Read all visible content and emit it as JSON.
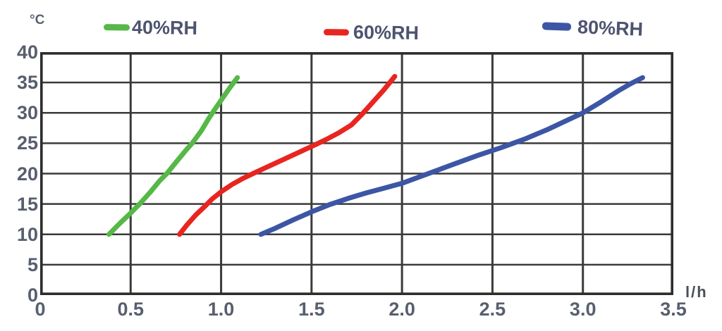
{
  "y_axis_unit": "°C",
  "x_axis_unit": "l/h",
  "colors": {
    "green": "#56b847",
    "red": "#e8251f",
    "blue": "#3c55a5",
    "grid": "#3b3b3b",
    "border": "#2d2d2d",
    "tick_text": "#575f6e",
    "legend_text": "#4d5470"
  },
  "chart_data": {
    "type": "line",
    "title": "",
    "xlabel": "l/h",
    "ylabel": "°C",
    "xlim": [
      0,
      3.5
    ],
    "ylim": [
      0,
      40
    ],
    "grid": true,
    "legend_position": "top",
    "x_ticks": [
      "0",
      "0.5",
      "1.0",
      "1.5",
      "2.0",
      "2.5",
      "3.0",
      "3.5"
    ],
    "y_ticks": [
      "0",
      "5",
      "10",
      "15",
      "20",
      "25",
      "30",
      "35",
      "40"
    ],
    "series": [
      {
        "name": "40%RH",
        "color": "#56b847",
        "points": [
          [
            0.38,
            10
          ],
          [
            0.44,
            11.8
          ],
          [
            0.5,
            13.5
          ],
          [
            0.55,
            15
          ],
          [
            0.61,
            17
          ],
          [
            0.66,
            18.8
          ],
          [
            0.7,
            20
          ],
          [
            0.76,
            22.2
          ],
          [
            0.81,
            24
          ],
          [
            0.84,
            25
          ],
          [
            0.89,
            27
          ],
          [
            0.93,
            29
          ],
          [
            0.97,
            30.8
          ],
          [
            1.01,
            32.5
          ],
          [
            1.05,
            34.2
          ],
          [
            1.09,
            35.8
          ]
        ]
      },
      {
        "name": "60%RH",
        "color": "#e8251f",
        "points": [
          [
            0.77,
            10
          ],
          [
            0.81,
            11.5
          ],
          [
            0.86,
            13.2
          ],
          [
            0.91,
            14.6
          ],
          [
            0.95,
            15.8
          ],
          [
            1.0,
            17
          ],
          [
            1.06,
            18.2
          ],
          [
            1.12,
            19.2
          ],
          [
            1.19,
            20.2
          ],
          [
            1.27,
            21.3
          ],
          [
            1.35,
            22.4
          ],
          [
            1.43,
            23.5
          ],
          [
            1.51,
            24.6
          ],
          [
            1.58,
            25.6
          ],
          [
            1.65,
            26.7
          ],
          [
            1.72,
            28
          ],
          [
            1.78,
            29.8
          ],
          [
            1.84,
            31.8
          ],
          [
            1.9,
            33.8
          ],
          [
            1.96,
            36
          ]
        ]
      },
      {
        "name": "80%RH",
        "color": "#3c55a5",
        "points": [
          [
            1.22,
            10
          ],
          [
            1.3,
            11
          ],
          [
            1.4,
            12.4
          ],
          [
            1.5,
            13.7
          ],
          [
            1.6,
            14.9
          ],
          [
            1.7,
            15.9
          ],
          [
            1.8,
            16.8
          ],
          [
            1.9,
            17.6
          ],
          [
            2.0,
            18.4
          ],
          [
            2.1,
            19.5
          ],
          [
            2.2,
            20.6
          ],
          [
            2.3,
            21.7
          ],
          [
            2.42,
            23
          ],
          [
            2.55,
            24.3
          ],
          [
            2.68,
            25.7
          ],
          [
            2.8,
            27.2
          ],
          [
            2.9,
            28.6
          ],
          [
            3.0,
            30
          ],
          [
            3.1,
            31.8
          ],
          [
            3.2,
            33.7
          ],
          [
            3.27,
            34.9
          ],
          [
            3.33,
            35.8
          ]
        ]
      }
    ]
  }
}
